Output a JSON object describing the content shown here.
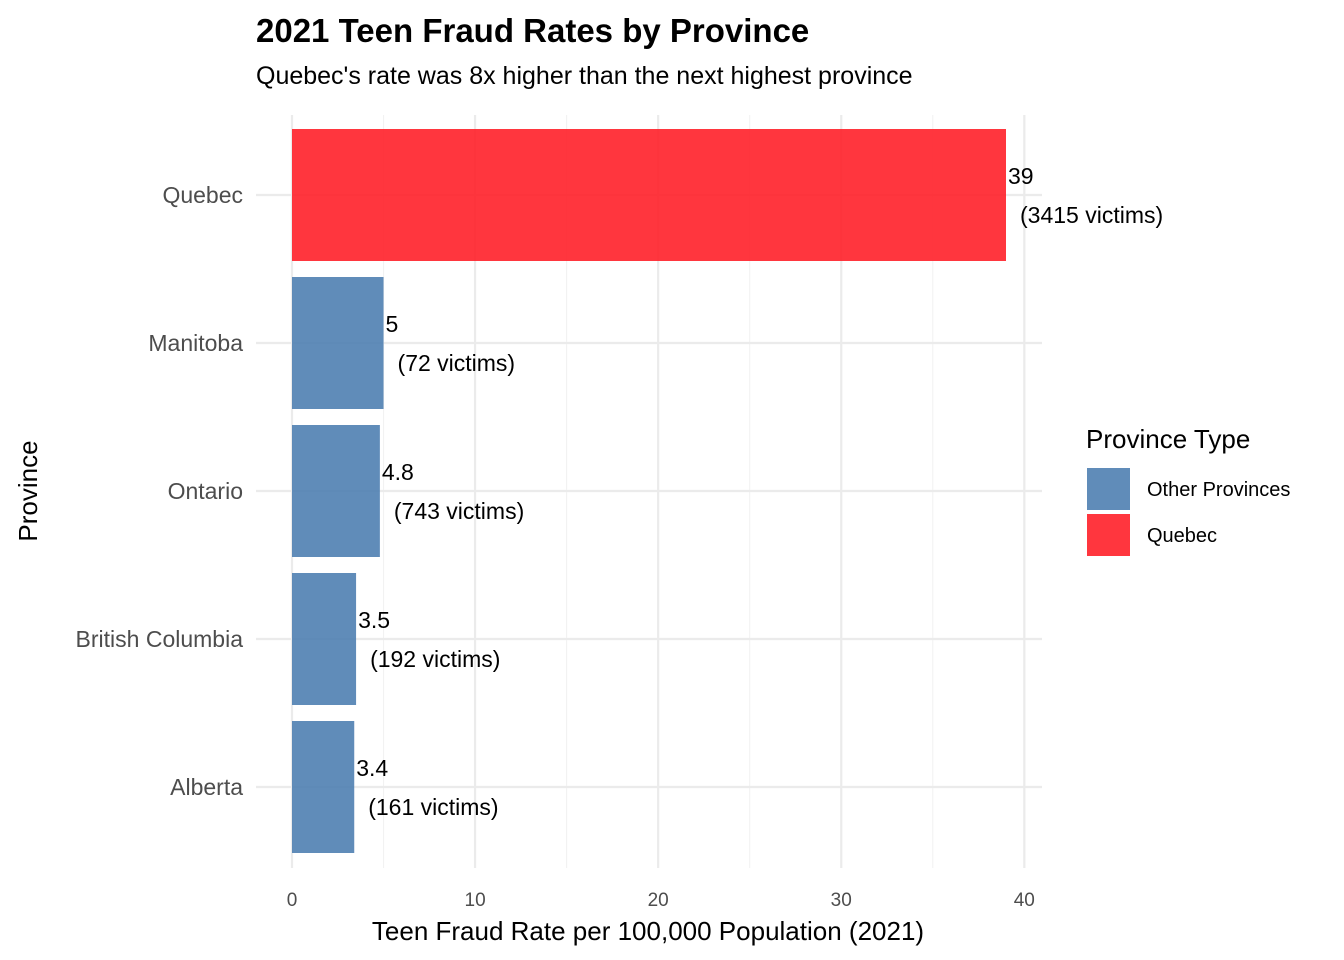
{
  "chart_data": {
    "type": "bar",
    "orientation": "horizontal",
    "title": "2021 Teen Fraud Rates by Province",
    "subtitle": "Quebec's rate was 8x higher than the next highest province",
    "xlabel": "Teen Fraud Rate per 100,000 Population (2021)",
    "ylabel": "Province",
    "xlim": [
      0,
      40
    ],
    "xticks": [
      0,
      10,
      20,
      30,
      40
    ],
    "grid": true,
    "categories": [
      "Quebec",
      "Manitoba",
      "Ontario",
      "British Columbia",
      "Alberta"
    ],
    "values": [
      39,
      5,
      4.8,
      3.5,
      3.4
    ],
    "value_labels": [
      "39",
      "5",
      "4.8",
      "3.5",
      "3.4"
    ],
    "victim_labels": [
      "(3415 victims)",
      "(72 victims)",
      "(743 victims)",
      "(192 victims)",
      "(161 victims)"
    ],
    "groups": [
      "Quebec",
      "Other Provinces",
      "Other Provinces",
      "Other Provinces",
      "Other Provinces"
    ],
    "legend": {
      "title": "Province Type",
      "position": "right",
      "entries": [
        {
          "name": "Other Provinces",
          "color": "#4F7FB1"
        },
        {
          "name": "Quebec",
          "color": "#FF2029"
        }
      ]
    }
  }
}
